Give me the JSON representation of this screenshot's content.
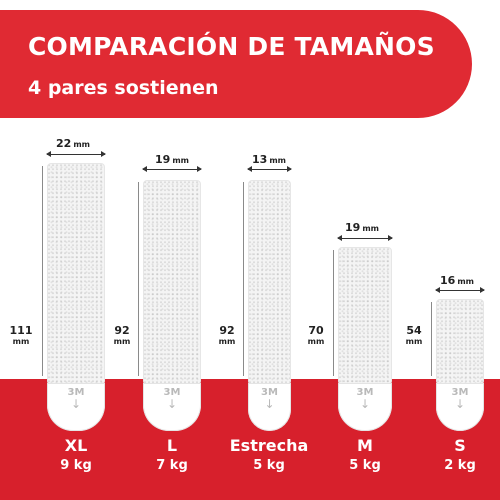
{
  "header": {
    "title": "COMPARACIÓN DE TAMAÑOS",
    "subtitle": "4 pares sostienen"
  },
  "colors": {
    "brand_red": "#e02a33",
    "band_red": "#d7202c"
  },
  "strips": [
    {
      "size": "XL",
      "width": "22",
      "height": "111",
      "unit": "mm",
      "weight": "9 kg",
      "logo": "3M",
      "icon": "down-arrow-icon"
    },
    {
      "size": "L",
      "width": "19",
      "height": "92",
      "unit": "mm",
      "weight": "7 kg",
      "logo": "3M",
      "icon": "down-arrow-icon"
    },
    {
      "size": "Estrecha",
      "width": "13",
      "height": "92",
      "unit": "mm",
      "weight": "5 kg",
      "logo": "3M",
      "icon": "down-arrow-icon"
    },
    {
      "size": "M",
      "width": "19",
      "height": "70",
      "unit": "mm",
      "weight": "5 kg",
      "logo": "3M",
      "icon": "down-arrow-icon"
    },
    {
      "size": "S",
      "width": "16",
      "height": "54",
      "unit": "mm",
      "weight": "2 kg",
      "logo": "3M",
      "icon": "down-arrow-icon"
    }
  ]
}
